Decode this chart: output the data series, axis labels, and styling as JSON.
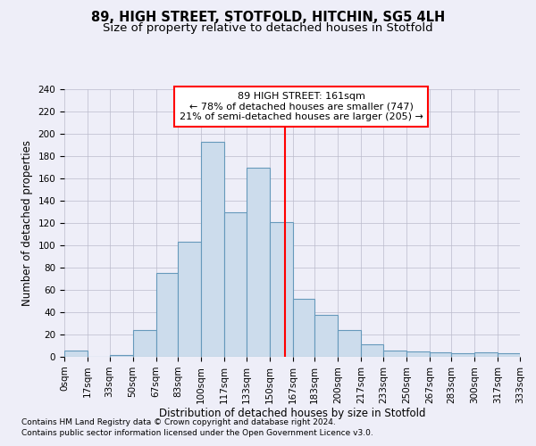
{
  "title": "89, HIGH STREET, STOTFOLD, HITCHIN, SG5 4LH",
  "subtitle": "Size of property relative to detached houses in Stotfold",
  "xlabel": "Distribution of detached houses by size in Stotfold",
  "ylabel": "Number of detached properties",
  "footnote1": "Contains HM Land Registry data © Crown copyright and database right 2024.",
  "footnote2": "Contains public sector information licensed under the Open Government Licence v3.0.",
  "annotation_title": "89 HIGH STREET: 161sqm",
  "annotation_line1": "← 78% of detached houses are smaller (747)",
  "annotation_line2": "21% of semi-detached houses are larger (205) →",
  "bin_edges": [
    0,
    17,
    33,
    50,
    67,
    83,
    100,
    117,
    133,
    150,
    167,
    183,
    200,
    217,
    233,
    250,
    267,
    283,
    300,
    317,
    333
  ],
  "bar_values": [
    6,
    0,
    2,
    24,
    75,
    103,
    193,
    130,
    170,
    121,
    52,
    38,
    24,
    11,
    6,
    5,
    4,
    3,
    4,
    3
  ],
  "bar_color": "#ccdcec",
  "bar_edge_color": "#6699bb",
  "bar_linewidth": 0.8,
  "grid_color": "#bbbbcc",
  "grid_linewidth": 0.5,
  "annotation_box_color": "white",
  "annotation_box_edge_color": "red",
  "vline_color": "red",
  "vline_x": 161,
  "ylim": [
    0,
    240
  ],
  "yticks": [
    0,
    20,
    40,
    60,
    80,
    100,
    120,
    140,
    160,
    180,
    200,
    220,
    240
  ],
  "bg_color": "#eeeef8",
  "title_fontsize": 10.5,
  "subtitle_fontsize": 9.5,
  "axis_label_fontsize": 8.5,
  "tick_fontsize": 7.5,
  "annotation_fontsize": 8,
  "footnote_fontsize": 6.5
}
